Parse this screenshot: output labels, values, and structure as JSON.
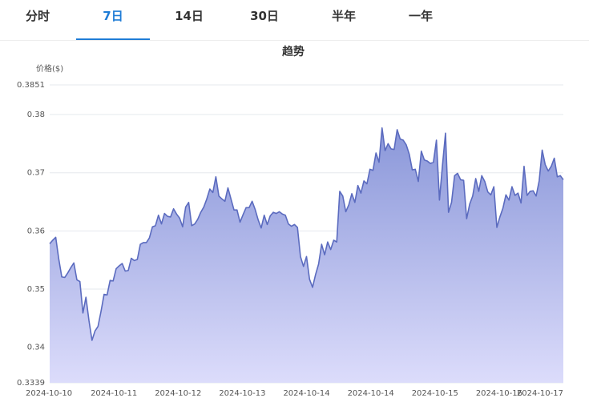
{
  "tabs": [
    {
      "label": "分时",
      "active": false
    },
    {
      "label": "7日",
      "active": true
    },
    {
      "label": "14日",
      "active": false
    },
    {
      "label": "30日",
      "active": false
    },
    {
      "label": "半年",
      "active": false
    },
    {
      "label": "一年",
      "active": false
    }
  ],
  "colors": {
    "accent": "#1f7cd6",
    "line": "#5b6bbf",
    "fill_top": "#8a97d9",
    "fill_bottom": "#dcdcfb"
  },
  "chart_data": {
    "type": "area",
    "title": "趋势",
    "ylabel": "价格($)",
    "xlabel": "",
    "ylim": [
      0.3339,
      0.3851
    ],
    "y_ticks": [
      0.3339,
      0.34,
      0.35,
      0.36,
      0.37,
      0.38,
      0.3851
    ],
    "y_tick_labels": [
      "0.3339",
      "0.34",
      "0.35",
      "0.36",
      "0.37",
      "0.38",
      "0.3851"
    ],
    "x_tick_labels": [
      "2024-10-10",
      "2024-10-11",
      "2024-10-12",
      "2024-10-13",
      "2024-10-14",
      "2024-10-14",
      "2024-10-15",
      "2024-10-16",
      "2024-10-17"
    ],
    "grid": true,
    "series": [
      {
        "values": [
          0.3578,
          0.3584,
          0.3589,
          0.3552,
          0.3521,
          0.352,
          0.3528,
          0.3537,
          0.3545,
          0.3516,
          0.3513,
          0.3459,
          0.3486,
          0.3446,
          0.3412,
          0.3428,
          0.3436,
          0.3462,
          0.3491,
          0.349,
          0.3515,
          0.3514,
          0.3535,
          0.354,
          0.3544,
          0.3531,
          0.3532,
          0.3553,
          0.3549,
          0.3551,
          0.3577,
          0.358,
          0.358,
          0.3588,
          0.3607,
          0.3609,
          0.3627,
          0.3612,
          0.363,
          0.3625,
          0.3624,
          0.3638,
          0.3629,
          0.3622,
          0.3607,
          0.3641,
          0.3649,
          0.3609,
          0.3612,
          0.362,
          0.3632,
          0.3641,
          0.3655,
          0.3672,
          0.3666,
          0.3693,
          0.366,
          0.3655,
          0.3651,
          0.3674,
          0.3655,
          0.3636,
          0.3636,
          0.3615,
          0.3628,
          0.364,
          0.364,
          0.3651,
          0.3637,
          0.3619,
          0.3605,
          0.3627,
          0.3611,
          0.3626,
          0.3632,
          0.363,
          0.3633,
          0.3629,
          0.3627,
          0.3612,
          0.3608,
          0.3611,
          0.3606,
          0.3556,
          0.3539,
          0.3556,
          0.3517,
          0.3503,
          0.3525,
          0.3543,
          0.3577,
          0.3559,
          0.3581,
          0.3568,
          0.3584,
          0.3581,
          0.3668,
          0.366,
          0.3633,
          0.3645,
          0.3664,
          0.3649,
          0.3678,
          0.3665,
          0.3686,
          0.3681,
          0.3706,
          0.3704,
          0.3734,
          0.3718,
          0.3777,
          0.3738,
          0.375,
          0.3741,
          0.374,
          0.3774,
          0.3758,
          0.3756,
          0.3748,
          0.3732,
          0.3705,
          0.3706,
          0.3685,
          0.3737,
          0.3722,
          0.372,
          0.3716,
          0.3718,
          0.3756,
          0.3653,
          0.3713,
          0.3768,
          0.3632,
          0.3649,
          0.3695,
          0.3699,
          0.3688,
          0.3687,
          0.3621,
          0.3646,
          0.366,
          0.369,
          0.3668,
          0.3695,
          0.3685,
          0.3667,
          0.3662,
          0.3676,
          0.3606,
          0.3624,
          0.3639,
          0.3662,
          0.3653,
          0.3676,
          0.3661,
          0.3665,
          0.3648,
          0.3711,
          0.3661,
          0.3668,
          0.3669,
          0.366,
          0.3686,
          0.3739,
          0.3714,
          0.3703,
          0.3711,
          0.3725,
          0.3693,
          0.3695,
          0.3688
        ]
      }
    ]
  }
}
